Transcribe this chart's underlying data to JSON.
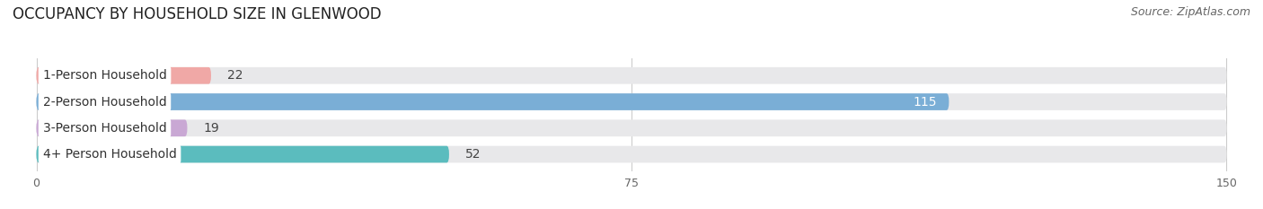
{
  "title": "OCCUPANCY BY HOUSEHOLD SIZE IN GLENWOOD",
  "source": "Source: ZipAtlas.com",
  "categories": [
    "1-Person Household",
    "2-Person Household",
    "3-Person Household",
    "4+ Person Household"
  ],
  "values": [
    22,
    115,
    19,
    52
  ],
  "bar_colors": [
    "#f0a8a6",
    "#7aaed6",
    "#c9a8d4",
    "#5bbcbe"
  ],
  "xlim_max": 150,
  "xticks": [
    0,
    75,
    150
  ],
  "background_color": "#ffffff",
  "bar_bg_color": "#e8e8ea",
  "title_fontsize": 12,
  "source_fontsize": 9,
  "label_fontsize": 10,
  "value_fontsize": 10
}
